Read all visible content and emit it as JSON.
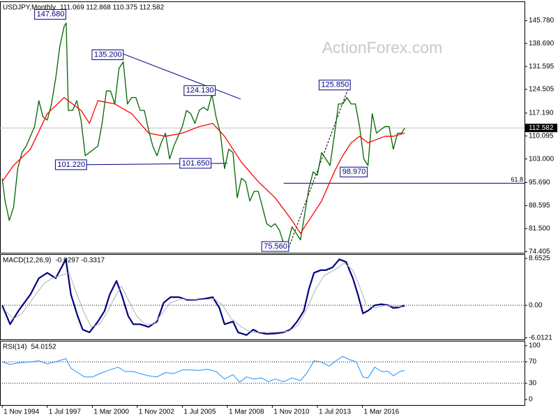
{
  "chart_data": [
    {
      "type": "line",
      "title": "USDJPY,Monthly",
      "subtitle": "111.069 112.868 110.375 112.582",
      "watermark": "ActionForex.com",
      "xlim": [
        1994.7,
        2025.77
      ],
      "ylim": [
        74.0,
        151.7
      ],
      "yticks": [
        {
          "value": 145.78,
          "label": "145.780"
        },
        {
          "value": 138.69,
          "label": "138.690"
        },
        {
          "value": 131.595,
          "label": "131.595"
        },
        {
          "value": 124.505,
          "label": "124.505"
        },
        {
          "value": 117.19,
          "label": "117.190"
        },
        {
          "value": 110.095,
          "label": "110.095"
        },
        {
          "value": 103.0,
          "label": "103.000"
        },
        {
          "value": 95.69,
          "label": "95.690"
        },
        {
          "value": 88.595,
          "label": "88.595"
        },
        {
          "value": 81.5,
          "label": "81.500"
        },
        {
          "value": 74.405,
          "label": "74.405"
        }
      ],
      "series": [
        {
          "color": "#006400",
          "x": [
            1994.83,
            1995.0,
            1995.25,
            1995.5,
            1995.75,
            1996.0,
            1996.25,
            1996.5,
            1996.75,
            1997.0,
            1997.25,
            1997.5,
            1997.75,
            1998.0,
            1998.25,
            1998.5,
            1998.62,
            1998.75,
            1999.0,
            1999.25,
            1999.5,
            1999.75,
            2000.0,
            2000.25,
            2000.5,
            2000.75,
            2001.0,
            2001.25,
            2001.5,
            2001.75,
            2002.0,
            2002.25,
            2002.5,
            2002.75,
            2003.0,
            2003.25,
            2003.5,
            2003.75,
            2004.0,
            2004.25,
            2004.5,
            2004.75,
            2005.0,
            2005.25,
            2005.5,
            2005.75,
            2006.0,
            2006.25,
            2006.5,
            2006.75,
            2007.0,
            2007.25,
            2007.5,
            2007.75,
            2008.0,
            2008.25,
            2008.5,
            2008.75,
            2009.0,
            2009.25,
            2009.5,
            2009.75,
            2010.0,
            2010.25,
            2010.5,
            2010.75,
            2011.0,
            2011.25,
            2011.5,
            2011.75,
            2012.0,
            2012.25,
            2012.5,
            2012.75,
            2013.0,
            2013.25,
            2013.5,
            2013.75,
            2014.0,
            2014.25,
            2014.5,
            2014.75,
            2015.0,
            2015.25,
            2015.5,
            2015.75,
            2016.0,
            2016.25,
            2016.5,
            2016.75,
            2017.0,
            2017.25,
            2017.5,
            2017.75,
            2018.0,
            2018.25,
            2018.5,
            2018.67
          ],
          "values": [
            97,
            90,
            84,
            88,
            100,
            105,
            107,
            110,
            113,
            121,
            116,
            115,
            120,
            128,
            138,
            144,
            145,
            118,
            118,
            121,
            115,
            104,
            105,
            106,
            107,
            114,
            124,
            124,
            120,
            131,
            133,
            120,
            122,
            122,
            118,
            118,
            112,
            107,
            104,
            108,
            111,
            103,
            107,
            110,
            113,
            118,
            117,
            114,
            118,
            119,
            118,
            123,
            116,
            111,
            100,
            106,
            105,
            91,
            97,
            96,
            90,
            93,
            93,
            88,
            83,
            82,
            83,
            81,
            77,
            77,
            82,
            80,
            78,
            86,
            94,
            99,
            98,
            105,
            103,
            101,
            110,
            120,
            120,
            122,
            120,
            120,
            113,
            103,
            101,
            117,
            111,
            112,
            113,
            113,
            106,
            111,
            111,
            112.582
          ]
        },
        {
          "color": "#ff0000",
          "x": [
            1994.83,
            1995.5,
            1996.5,
            1997.5,
            1998.5,
            1999.5,
            2000.0,
            2000.5,
            2001.5,
            2002.5,
            2003.5,
            2004.5,
            2005.5,
            2006.5,
            2007.3,
            2008.0,
            2008.5,
            2009.0,
            2010.0,
            2011.0,
            2012.0,
            2012.5,
            2013.0,
            2013.75,
            2014.5,
            2015.0,
            2015.5,
            2016.0,
            2016.5,
            2017.0,
            2017.5,
            2018.0,
            2018.67
          ],
          "values": [
            96,
            101,
            106,
            117,
            122,
            118,
            114,
            121,
            120,
            117,
            111,
            110,
            111,
            113,
            114,
            110,
            106,
            102,
            96,
            91,
            84,
            80,
            84,
            90,
            99,
            104,
            108,
            110,
            108,
            109,
            110,
            110,
            111
          ]
        }
      ],
      "trendlines": [
        {
          "color": "#000080",
          "x": [
            2001.93,
            2008.96
          ],
          "values": [
            135.6,
            121.5
          ]
        },
        {
          "color": "#000080",
          "x": [
            1999.58,
            2008.17
          ],
          "values": [
            101.22,
            101.65
          ]
        },
        {
          "color": "#000000",
          "dashed": true,
          "x": [
            2011.8,
            2015.4
          ],
          "values": [
            75.56,
            125.85
          ]
        }
      ],
      "levels": [
        {
          "value": 95.5,
          "label": "61.8",
          "x_start": 2011.5
        }
      ],
      "last_price": {
        "value": 112.582,
        "label": "112.582"
      },
      "annotations": [
        {
          "label": "147.680",
          "value": 147.68,
          "x": 1998.6
        },
        {
          "label": "135.200",
          "value": 135.2,
          "x": 2002.0
        },
        {
          "label": "124.130",
          "value": 124.13,
          "x": 2007.45
        },
        {
          "label": "101.220",
          "value": 101.22,
          "x": 1999.83
        },
        {
          "label": "101.650",
          "value": 101.65,
          "x": 2007.2
        },
        {
          "label": "125.850",
          "value": 125.85,
          "x": 2015.45
        },
        {
          "label": "98.970",
          "value": 98.97,
          "x": 2016.45
        },
        {
          "label": "75.560",
          "value": 75.56,
          "x": 2011.8
        }
      ]
    },
    {
      "type": "line",
      "title": "MACD(12,26,9)",
      "subtitle": "-0.0297 -0.3317",
      "xlim": [
        1994.7,
        2025.77
      ],
      "ylim": [
        -6.3,
        9.44
      ],
      "yticks": [
        8.6525,
        {
          "value": 0,
          "label": "0.00"
        },
        -6.0121
      ],
      "ref_lines": [
        0
      ],
      "series": [
        {
          "color": "#000080",
          "width": 2.2,
          "x": [
            1994.83,
            1995.3,
            1995.8,
            1996.5,
            1997.0,
            1997.5,
            1998.0,
            1998.6,
            1998.9,
            1999.3,
            1999.6,
            2000.0,
            2000.5,
            2000.9,
            2001.2,
            2001.6,
            2001.9,
            2002.3,
            2002.6,
            2003.0,
            2003.5,
            2004.0,
            2004.4,
            2004.8,
            2005.3,
            2005.8,
            2006.3,
            2006.8,
            2007.3,
            2007.7,
            2008.0,
            2008.5,
            2008.8,
            2009.3,
            2009.7,
            2010.0,
            2010.5,
            2011.0,
            2011.5,
            2011.9,
            2012.3,
            2012.7,
            2013.0,
            2013.3,
            2013.7,
            2014.0,
            2014.4,
            2014.8,
            2015.2,
            2015.6,
            2015.9,
            2016.2,
            2016.5,
            2016.9,
            2017.3,
            2017.7,
            2018.0,
            2018.3,
            2018.67
          ],
          "values": [
            0,
            -3.5,
            -1,
            2,
            5,
            6,
            5,
            8.5,
            2,
            -2,
            -4.5,
            -5,
            -3,
            -1,
            2,
            4.5,
            2,
            -2,
            -3.5,
            -3.5,
            -4,
            -3,
            0.5,
            1.5,
            1.5,
            1.0,
            1,
            1.2,
            1.5,
            -0.5,
            -3.5,
            -3,
            -5,
            -5.5,
            -4.5,
            -5,
            -5.3,
            -5.2,
            -5,
            -4.5,
            -3,
            -1,
            3,
            6,
            6.5,
            6.5,
            7,
            8.5,
            8,
            5,
            2,
            -1.5,
            -1,
            0,
            0.2,
            0,
            -0.5,
            -0.4,
            -0.0297
          ]
        },
        {
          "color": "#b0b0b0",
          "width": 1,
          "x": [
            1995.0,
            1995.5,
            1996.0,
            1996.7,
            1997.3,
            1997.8,
            1998.3,
            1998.8,
            1999.2,
            1999.7,
            2000.1,
            2000.6,
            2001.1,
            2001.5,
            2001.9,
            2002.3,
            2002.8,
            2003.3,
            2003.8,
            2004.3,
            2004.8,
            2005.5,
            2006.5,
            2007.4,
            2007.9,
            2008.4,
            2009.0,
            2009.6,
            2010.3,
            2011.0,
            2011.8,
            2012.4,
            2012.9,
            2013.4,
            2013.9,
            2014.5,
            2015.1,
            2015.6,
            2016.0,
            2016.4,
            2016.9,
            2017.5,
            2018.1,
            2018.67
          ],
          "values": [
            -1,
            -2.5,
            -1.5,
            1.5,
            4,
            5,
            5.5,
            6,
            2.5,
            -1.5,
            -4,
            -3.5,
            -1,
            1.5,
            3.5,
            1,
            -2,
            -3.5,
            -3.5,
            -1.5,
            0.5,
            1.2,
            1,
            1.2,
            0,
            -2.5,
            -4,
            -5,
            -5,
            -5,
            -4.8,
            -3.5,
            -0.5,
            3,
            5.5,
            6.5,
            7.8,
            6.5,
            3.5,
            0,
            -0.5,
            0,
            -0.2,
            -0.3317
          ]
        }
      ]
    },
    {
      "type": "line",
      "title": "RSI(14)",
      "subtitle": "54.0152",
      "xlim": [
        1994.7,
        2025.77
      ],
      "ylim": [
        -10.4,
        109.1
      ],
      "yticks": [
        100,
        70,
        30,
        0
      ],
      "ref_lines": [
        70,
        30
      ],
      "xticks": [
        {
          "value": 1994.83,
          "label": "1 Nov 1994"
        },
        {
          "value": 1997.5,
          "label": "1 Jul 1997"
        },
        {
          "value": 2000.17,
          "label": "1 Mar 2000"
        },
        {
          "value": 2002.83,
          "label": "1 Nov 2002"
        },
        {
          "value": 2005.5,
          "label": "1 Jul 2005"
        },
        {
          "value": 2008.17,
          "label": "1 Mar 2008"
        },
        {
          "value": 2010.83,
          "label": "1 Nov 2010"
        },
        {
          "value": 2013.5,
          "label": "1 Jul 2013"
        },
        {
          "value": 2016.17,
          "label": "1 Mar 2016"
        }
      ],
      "series": [
        {
          "color": "#1e90ff",
          "width": 1,
          "x": [
            1994.83,
            1995.3,
            1995.8,
            1996.5,
            1997.0,
            1997.5,
            1998.0,
            1998.6,
            1998.9,
            1999.3,
            1999.7,
            2000.2,
            2000.6,
            2001.2,
            2001.7,
            2002.1,
            2002.6,
            2003.0,
            2003.5,
            2004.0,
            2004.5,
            2005.0,
            2005.5,
            2006.0,
            2006.5,
            2007.0,
            2007.5,
            2008.0,
            2008.5,
            2008.9,
            2009.3,
            2009.7,
            2010.2,
            2010.6,
            2011.0,
            2011.5,
            2012.0,
            2012.5,
            2012.9,
            2013.3,
            2013.7,
            2014.2,
            2014.6,
            2015.0,
            2015.4,
            2015.8,
            2016.2,
            2016.5,
            2016.9,
            2017.3,
            2017.7,
            2018.0,
            2018.4,
            2018.67
          ],
          "values": [
            70,
            65,
            68,
            70,
            72,
            66,
            70,
            76,
            58,
            50,
            42,
            42,
            48,
            55,
            60,
            52,
            52,
            48,
            44,
            42,
            50,
            48,
            55,
            55,
            54,
            56,
            52,
            38,
            46,
            32,
            42,
            38,
            40,
            33,
            38,
            33,
            40,
            35,
            50,
            72,
            70,
            62,
            72,
            80,
            74,
            70,
            42,
            40,
            60,
            52,
            52,
            44,
            52,
            54.0152
          ]
        }
      ]
    }
  ]
}
